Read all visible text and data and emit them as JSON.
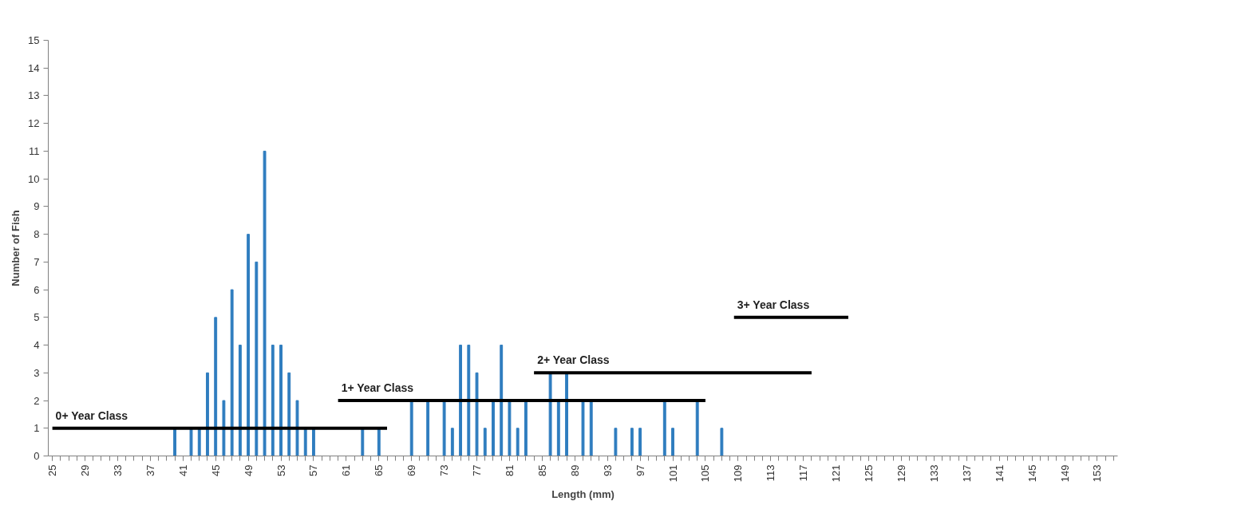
{
  "chart_data": {
    "type": "bar",
    "xlabel": "Length (mm)",
    "ylabel": "Number of Fish",
    "xlim": [
      24.5,
      155.5
    ],
    "ylim": [
      0,
      15
    ],
    "yticks": [
      0,
      1,
      2,
      3,
      4,
      5,
      6,
      7,
      8,
      9,
      10,
      11,
      12,
      13,
      14,
      15
    ],
    "xticks": [
      25,
      29,
      33,
      37,
      41,
      45,
      49,
      53,
      57,
      61,
      65,
      69,
      73,
      77,
      81,
      85,
      89,
      93,
      97,
      101,
      105,
      109,
      113,
      117,
      121,
      125,
      129,
      133,
      137,
      141,
      145,
      149,
      153
    ],
    "grid": false,
    "series": [
      {
        "color": "#2f7dbf",
        "x": [
          40,
          42,
          43,
          44,
          45,
          46,
          47,
          48,
          49,
          50,
          51,
          52,
          53,
          54,
          55,
          56,
          57,
          63,
          65,
          69,
          71,
          73,
          74,
          75,
          76,
          77,
          78,
          79,
          80,
          81,
          82,
          83,
          86,
          87,
          88,
          90,
          91,
          94,
          96,
          97,
          100,
          101,
          104,
          107
        ],
        "values": [
          1,
          1,
          1,
          3,
          5,
          2,
          6,
          4,
          8,
          7,
          11,
          4,
          4,
          3,
          2,
          1,
          1,
          1,
          1,
          2,
          2,
          2,
          1,
          4,
          4,
          3,
          1,
          2,
          4,
          2,
          1,
          2,
          3,
          2,
          3,
          2,
          2,
          1,
          1,
          1,
          2,
          1,
          2,
          1
        ]
      },
      {
        "type": "line",
        "name": "0+ Year Class",
        "color": "#000000",
        "x": [
          25,
          66
        ],
        "values": [
          1,
          1
        ]
      },
      {
        "type": "line",
        "name": "1+ Year Class",
        "color": "#000000",
        "x": [
          60,
          105
        ],
        "values": [
          2,
          2
        ]
      },
      {
        "type": "line",
        "name": "2+ Year Class",
        "color": "#000000",
        "x": [
          84,
          118
        ],
        "values": [
          3,
          3
        ]
      },
      {
        "type": "line",
        "name": "3+ Year Class",
        "color": "#000000",
        "x": [
          108.5,
          122.5
        ],
        "values": [
          5,
          5
        ]
      }
    ]
  }
}
